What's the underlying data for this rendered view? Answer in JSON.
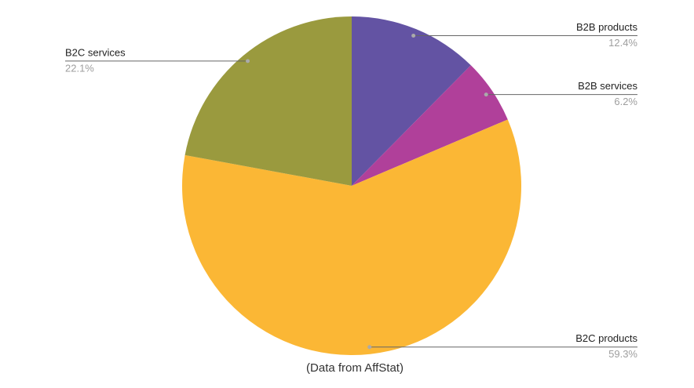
{
  "chart_data": {
    "type": "pie",
    "categories": [
      "B2B products",
      "B2B services",
      "B2C products",
      "B2C services"
    ],
    "values": [
      12.4,
      6.2,
      59.3,
      22.1
    ],
    "value_labels": [
      "12.4%",
      "6.2%",
      "59.3%",
      "22.1%"
    ],
    "colors": [
      "#6353a3",
      "#b0409a",
      "#fbb735",
      "#9a9a3e"
    ],
    "caption": "(Data from AffStat)"
  }
}
